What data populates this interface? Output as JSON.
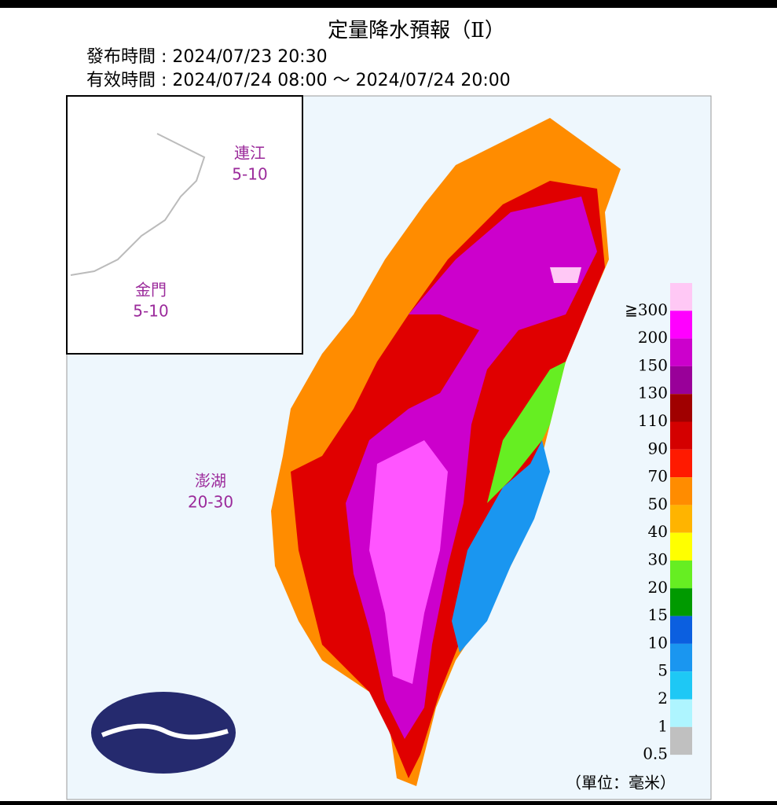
{
  "header": {
    "title": "定量降水預報（Ⅱ）",
    "issued": "發布時間 : 2024/07/23 20:30",
    "valid": "有效時間 : 2024/07/24 08:00 ～ 2024/07/24 20:00"
  },
  "islands": [
    {
      "name": "連江",
      "range": "5-10"
    },
    {
      "name": "金門",
      "range": "5-10"
    },
    {
      "name": "澎湖",
      "range": "20-30"
    }
  ],
  "legend": {
    "items": [
      {
        "label": "≧300",
        "color": "#ffc8f5"
      },
      {
        "label": "200",
        "color": "#ff00ff"
      },
      {
        "label": "150",
        "color": "#cc00cc"
      },
      {
        "label": "130",
        "color": "#990099"
      },
      {
        "label": "110",
        "color": "#a00000"
      },
      {
        "label": "90",
        "color": "#d40000"
      },
      {
        "label": "70",
        "color": "#ff1a00"
      },
      {
        "label": "50",
        "color": "#ff8c00"
      },
      {
        "label": "40",
        "color": "#ffb400"
      },
      {
        "label": "30",
        "color": "#ffff00"
      },
      {
        "label": "20",
        "color": "#66ee22"
      },
      {
        "label": "15",
        "color": "#009a00"
      },
      {
        "label": "10",
        "color": "#0b5fe0"
      },
      {
        "label": "5",
        "color": "#1a96f0"
      },
      {
        "label": "2",
        "color": "#1ec8f5"
      },
      {
        "label": "1",
        "color": "#aef5ff"
      },
      {
        "label": "0.5",
        "color": "#c0c0c0"
      }
    ],
    "unit": "（單位：毫米）"
  }
}
